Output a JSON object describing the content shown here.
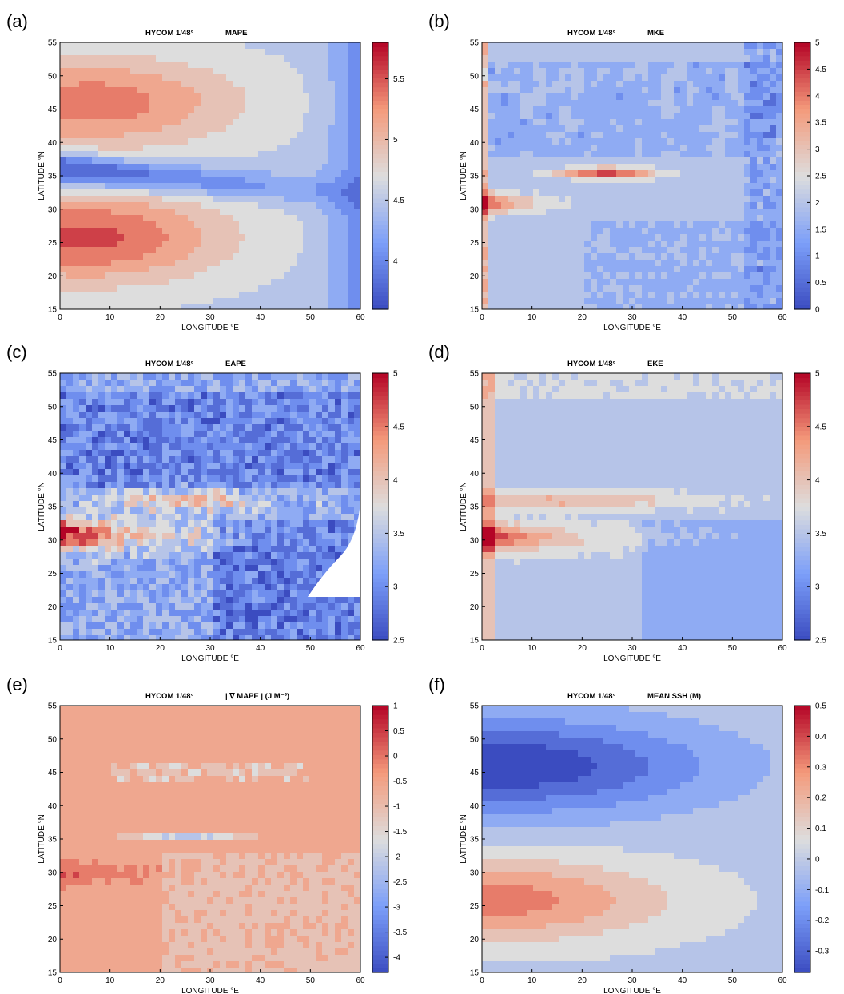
{
  "chart_data": [
    {
      "type": "heatmap",
      "panel_label": "(a)",
      "title": "HYCOM 1/48°",
      "variable": "MAPE",
      "xlabel": "LONGITUDE °E",
      "ylabel": "LATITUDE °N",
      "xlim": [
        0,
        60
      ],
      "ylim": [
        15,
        55
      ],
      "xticks": [
        0,
        10,
        20,
        30,
        40,
        50,
        60
      ],
      "yticks": [
        15,
        20,
        25,
        30,
        35,
        40,
        45,
        50,
        55
      ],
      "colorbar": {
        "range": [
          3.6,
          5.8
        ],
        "ticks": [
          4,
          4.5,
          5,
          5.5
        ]
      }
    },
    {
      "type": "heatmap",
      "panel_label": "(b)",
      "title": "HYCOM 1/48°",
      "variable": "MKE",
      "xlabel": "LONGITUDE °E",
      "ylabel": "LATITUDE °N",
      "xlim": [
        0,
        60
      ],
      "ylim": [
        15,
        55
      ],
      "xticks": [
        0,
        10,
        20,
        30,
        40,
        50,
        60
      ],
      "yticks": [
        15,
        20,
        25,
        30,
        35,
        40,
        45,
        50,
        55
      ],
      "colorbar": {
        "range": [
          0,
          5
        ],
        "ticks": [
          0,
          0.5,
          1,
          1.5,
          2,
          2.5,
          3,
          3.5,
          4,
          4.5,
          5
        ]
      }
    },
    {
      "type": "heatmap",
      "panel_label": "(c)",
      "title": "HYCOM 1/48°",
      "variable": "EAPE",
      "xlabel": "LONGITUDE °E",
      "ylabel": "LATITUDE °N",
      "xlim": [
        0,
        60
      ],
      "ylim": [
        15,
        55
      ],
      "xticks": [
        0,
        10,
        20,
        30,
        40,
        50,
        60
      ],
      "yticks": [
        15,
        20,
        25,
        30,
        35,
        40,
        45,
        50,
        55
      ],
      "colorbar": {
        "range": [
          2.5,
          5
        ],
        "ticks": [
          2.5,
          3,
          3.5,
          4,
          4.5,
          5
        ]
      }
    },
    {
      "type": "heatmap",
      "panel_label": "(d)",
      "title": "HYCOM 1/48°",
      "variable": "EKE",
      "xlabel": "LONGITUDE °E",
      "ylabel": "LATITUDE °N",
      "xlim": [
        0,
        60
      ],
      "ylim": [
        15,
        55
      ],
      "xticks": [
        0,
        10,
        20,
        30,
        40,
        50,
        60
      ],
      "yticks": [
        15,
        20,
        25,
        30,
        35,
        40,
        45,
        50,
        55
      ],
      "colorbar": {
        "range": [
          2.5,
          5
        ],
        "ticks": [
          2.5,
          3,
          3.5,
          4,
          4.5,
          5
        ]
      }
    },
    {
      "type": "heatmap",
      "panel_label": "(e)",
      "title": "HYCOM 1/48°",
      "variable": "| ∇ MAPE |  (J M⁻³)",
      "xlabel": "LONGITUDE °E",
      "ylabel": "LATITUDE °N",
      "xlim": [
        0,
        60
      ],
      "ylim": [
        15,
        55
      ],
      "xticks": [
        0,
        10,
        20,
        30,
        40,
        50,
        60
      ],
      "yticks": [
        15,
        20,
        25,
        30,
        35,
        40,
        45,
        50,
        55
      ],
      "colorbar": {
        "range": [
          -4.3,
          1
        ],
        "ticks": [
          -4,
          -3.5,
          -3,
          -2.5,
          -2,
          -1.5,
          -1,
          -0.5,
          0,
          0.5,
          1
        ]
      }
    },
    {
      "type": "heatmap",
      "panel_label": "(f)",
      "title": "HYCOM 1/48°",
      "variable": "MEAN SSH  (M)",
      "xlabel": "LONGITUDE °E",
      "ylabel": "LATITUDE °N",
      "xlim": [
        0,
        60
      ],
      "ylim": [
        15,
        55
      ],
      "xticks": [
        0,
        10,
        20,
        30,
        40,
        50,
        60
      ],
      "yticks": [
        15,
        20,
        25,
        30,
        35,
        40,
        45,
        50,
        55
      ],
      "colorbar": {
        "range": [
          -0.37,
          0.5
        ],
        "ticks": [
          -0.3,
          -0.2,
          -0.1,
          0,
          0.1,
          0.2,
          0.3,
          0.4,
          0.5
        ]
      }
    }
  ]
}
